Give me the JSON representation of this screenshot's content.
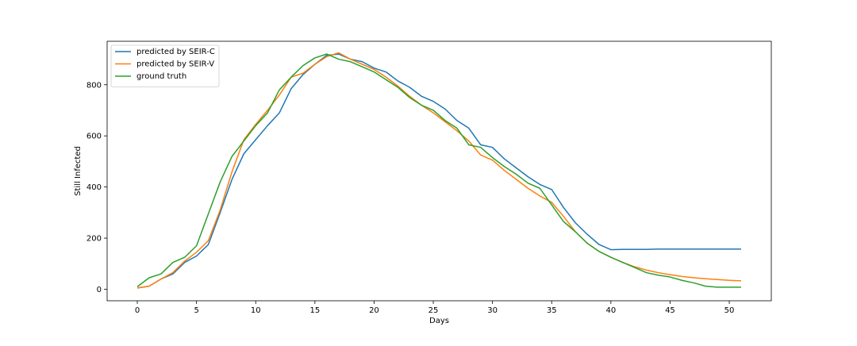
{
  "chart_data": {
    "type": "line",
    "title": "",
    "xlabel": "Days",
    "ylabel": "Still Infected",
    "xlim": [
      -2.55,
      53.55
    ],
    "ylim": [
      -45,
      970
    ],
    "xticks": [
      0,
      5,
      10,
      15,
      20,
      25,
      30,
      35,
      40,
      45,
      50
    ],
    "yticks": [
      0,
      200,
      400,
      600,
      800
    ],
    "grid": false,
    "legend_position": "top-left",
    "x": [
      0,
      1,
      2,
      3,
      4,
      5,
      6,
      7,
      8,
      9,
      10,
      11,
      12,
      13,
      14,
      15,
      16,
      17,
      18,
      19,
      20,
      21,
      22,
      23,
      24,
      25,
      26,
      27,
      28,
      29,
      30,
      31,
      32,
      33,
      34,
      35,
      36,
      37,
      38,
      39,
      40,
      41,
      42,
      43,
      44,
      45,
      46,
      47,
      48,
      49,
      50,
      51
    ],
    "series": [
      {
        "name": "predicted by SEIR-C",
        "color": "#1f77b4",
        "values": [
          5,
          12,
          40,
          60,
          105,
          130,
          175,
          300,
          430,
          530,
          585,
          640,
          690,
          785,
          840,
          880,
          915,
          920,
          900,
          890,
          865,
          850,
          815,
          790,
          755,
          735,
          705,
          660,
          630,
          565,
          555,
          510,
          475,
          440,
          410,
          390,
          320,
          260,
          215,
          175,
          155,
          156,
          156,
          156,
          157,
          157,
          157,
          157,
          157,
          157,
          157,
          157
        ]
      },
      {
        "name": "predicted by SEIR-V",
        "color": "#ff7f0e",
        "values": [
          5,
          12,
          40,
          65,
          110,
          145,
          190,
          310,
          460,
          585,
          645,
          700,
          760,
          830,
          845,
          880,
          910,
          925,
          900,
          880,
          860,
          830,
          795,
          755,
          720,
          690,
          655,
          620,
          580,
          525,
          505,
          465,
          430,
          395,
          365,
          340,
          285,
          225,
          180,
          148,
          125,
          105,
          88,
          75,
          65,
          57,
          50,
          45,
          41,
          38,
          35,
          33
        ]
      },
      {
        "name": "ground truth",
        "color": "#2ca02c",
        "values": [
          10,
          45,
          60,
          105,
          125,
          170,
          295,
          420,
          520,
          580,
          640,
          690,
          780,
          830,
          875,
          905,
          920,
          900,
          890,
          870,
          850,
          820,
          790,
          750,
          720,
          700,
          660,
          630,
          565,
          555,
          515,
          480,
          450,
          415,
          395,
          330,
          265,
          225,
          180,
          148,
          125,
          105,
          85,
          65,
          55,
          48,
          35,
          25,
          12,
          8,
          8,
          8
        ]
      }
    ]
  }
}
